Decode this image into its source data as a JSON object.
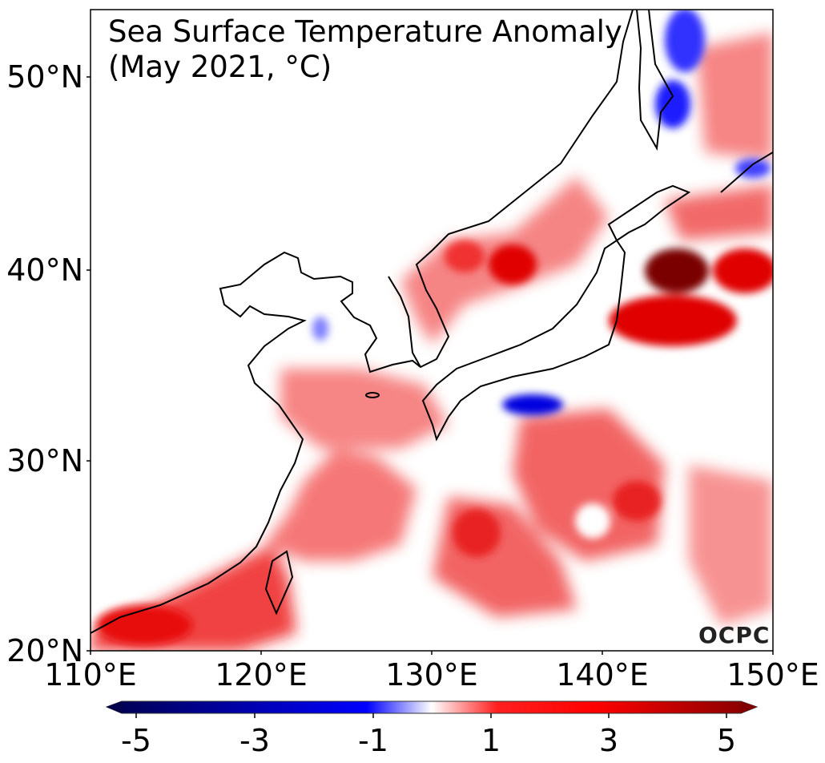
{
  "title_line1": "Sea Surface Temperature Anomaly",
  "title_line2": "(May 2021, °C)",
  "logo": "OCPC",
  "lat_labels": [
    "50°N",
    "40°N",
    "30°N",
    "20°N"
  ],
  "lon_labels": [
    "110°E",
    "120°E",
    "130°E",
    "140°E",
    "150°E"
  ],
  "colorbar": {
    "min": -5,
    "max": 5,
    "ticks": [
      "-5",
      "-3",
      "-1",
      "1",
      "3",
      "5"
    ],
    "colors": [
      "#00004d",
      "#0000ff",
      "#ffffff",
      "#ff0000",
      "#800000"
    ]
  },
  "map_extent": {
    "lon": [
      110,
      150
    ],
    "lat": [
      20,
      53.5
    ]
  }
}
